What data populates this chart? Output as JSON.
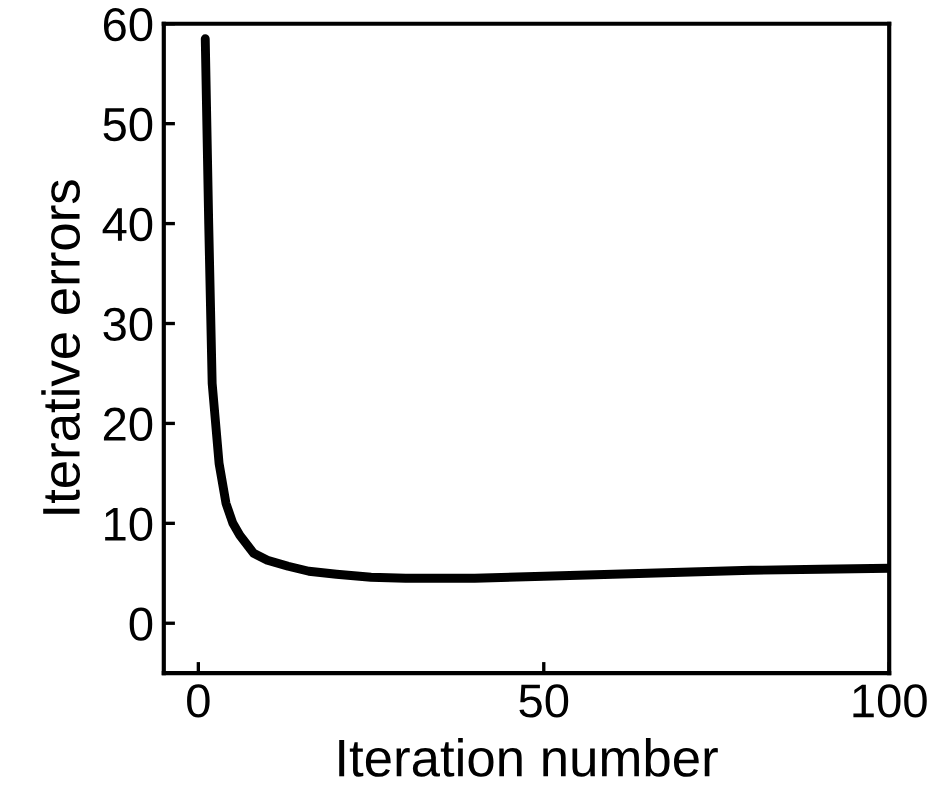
{
  "chart_data": {
    "type": "line",
    "xlabel": "Iteration number",
    "ylabel": "Iterative errors",
    "xlim": [
      -5,
      100
    ],
    "ylim": [
      -5,
      60
    ],
    "xticks": [
      0,
      50,
      100
    ],
    "yticks": [
      0,
      10,
      20,
      30,
      40,
      50,
      60
    ],
    "grid": false,
    "legend": false,
    "line_style": "solid",
    "marker": "none",
    "series": [
      {
        "color": "#000000",
        "x": [
          1,
          1.5,
          2,
          3,
          4,
          5,
          6,
          8,
          10,
          13,
          16,
          20,
          25,
          30,
          40,
          50,
          60,
          70,
          80,
          90,
          100
        ],
        "values": [
          58.5,
          40,
          24,
          16,
          12,
          10,
          8.8,
          7,
          6.3,
          5.7,
          5.2,
          4.9,
          4.6,
          4.5,
          4.5,
          4.7,
          4.9,
          5.1,
          5.3,
          5.4,
          5.5
        ]
      }
    ]
  }
}
